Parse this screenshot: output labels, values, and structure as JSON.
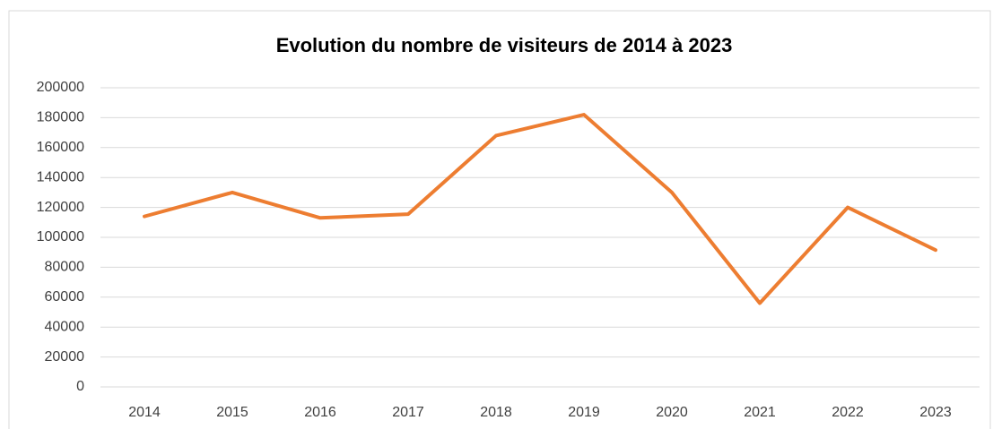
{
  "chart_data": {
    "type": "line",
    "title": "Evolution du nombre de visiteurs de 2014 à 2023",
    "categories": [
      "2014",
      "2015",
      "2016",
      "2017",
      "2018",
      "2019",
      "2020",
      "2021",
      "2022",
      "2023"
    ],
    "values": [
      114000,
      130000,
      113000,
      115500,
      168000,
      182000,
      130000,
      56000,
      120000,
      91500
    ],
    "color": "#ed7d31",
    "ylim": [
      0,
      200000
    ],
    "yticks": [
      0,
      20000,
      40000,
      60000,
      80000,
      100000,
      120000,
      140000,
      160000,
      180000,
      200000
    ],
    "grid": true
  }
}
